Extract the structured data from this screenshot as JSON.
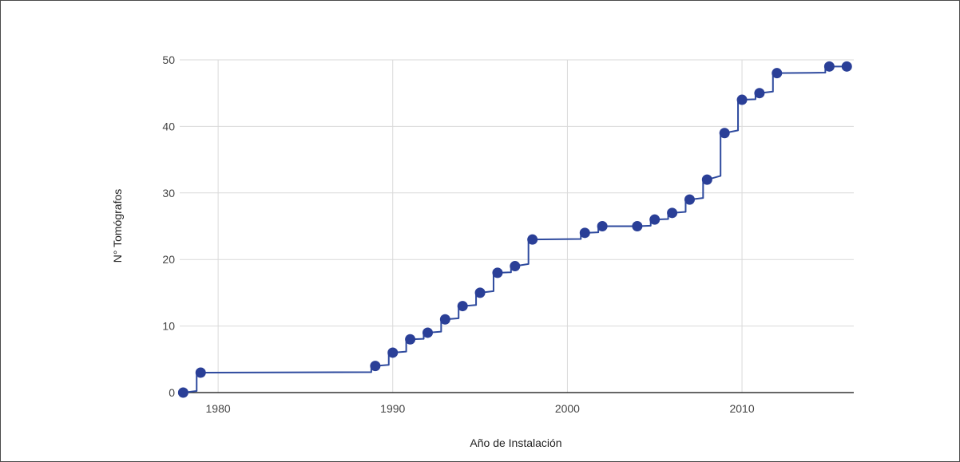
{
  "chart_data": {
    "type": "line",
    "title": "",
    "xlabel": "Año de Instalación",
    "ylabel": "N° Tomógrafos",
    "xlim": [
      1977.8,
      2016.4
    ],
    "ylim": [
      0,
      50
    ],
    "x_ticks": [
      1980,
      1990,
      2000,
      2010
    ],
    "y_ticks": [
      0,
      10,
      20,
      30,
      40,
      50
    ],
    "x_tick_labels": [
      "1980",
      "1990",
      "2000",
      "2010"
    ],
    "y_tick_labels": [
      "0",
      "10",
      "20",
      "30",
      "40",
      "50"
    ],
    "grid": true,
    "legend": "none",
    "colors": {
      "series": "#2e4a9e",
      "point": "#2a3f97",
      "grid": "#d9d9d9",
      "axis": "#333333"
    },
    "series": [
      {
        "x": [
          1978,
          1979,
          1989,
          1990,
          1991,
          1992,
          1993,
          1994,
          1995,
          1996,
          1997,
          1998,
          2001,
          2002,
          2004,
          2005,
          2006,
          2007,
          2008,
          2009,
          2010,
          2011,
          2012,
          2015,
          2016
        ],
        "y": [
          0,
          3,
          4,
          6,
          8,
          9,
          11,
          13,
          15,
          18,
          19,
          23,
          24,
          25,
          25,
          26,
          27,
          29,
          32,
          39,
          44,
          45,
          48,
          49,
          49
        ]
      }
    ]
  }
}
